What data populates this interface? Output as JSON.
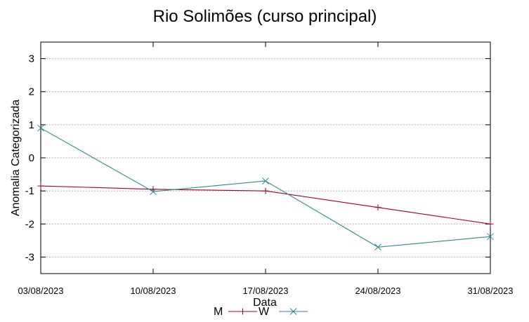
{
  "chart_data": {
    "type": "line",
    "title": "Rio Solimões (curso principal)",
    "xlabel": "Data",
    "ylabel": "Anomalia Categorizada",
    "categories": [
      "03/08/2023",
      "10/08/2023",
      "17/08/2023",
      "24/08/2023",
      "31/08/2023"
    ],
    "yticks": [
      3,
      2,
      1,
      0,
      -1,
      -2,
      -3
    ],
    "ytick_labels": [
      "3",
      "2",
      "1",
      "0",
      "-1",
      "-2",
      "-3"
    ],
    "ylim": [
      -3.5,
      3.5
    ],
    "grid": true,
    "legend_position": "bottom-center",
    "series": [
      {
        "name": "M",
        "marker": "+",
        "color": "#a0002a",
        "values": [
          -0.85,
          -0.95,
          -1.0,
          -1.5,
          -2.0
        ]
      },
      {
        "name": "W",
        "marker": "x",
        "color": "#2e8b8b",
        "values": [
          0.9,
          -1.02,
          -0.7,
          -2.7,
          -2.38
        ]
      }
    ]
  }
}
